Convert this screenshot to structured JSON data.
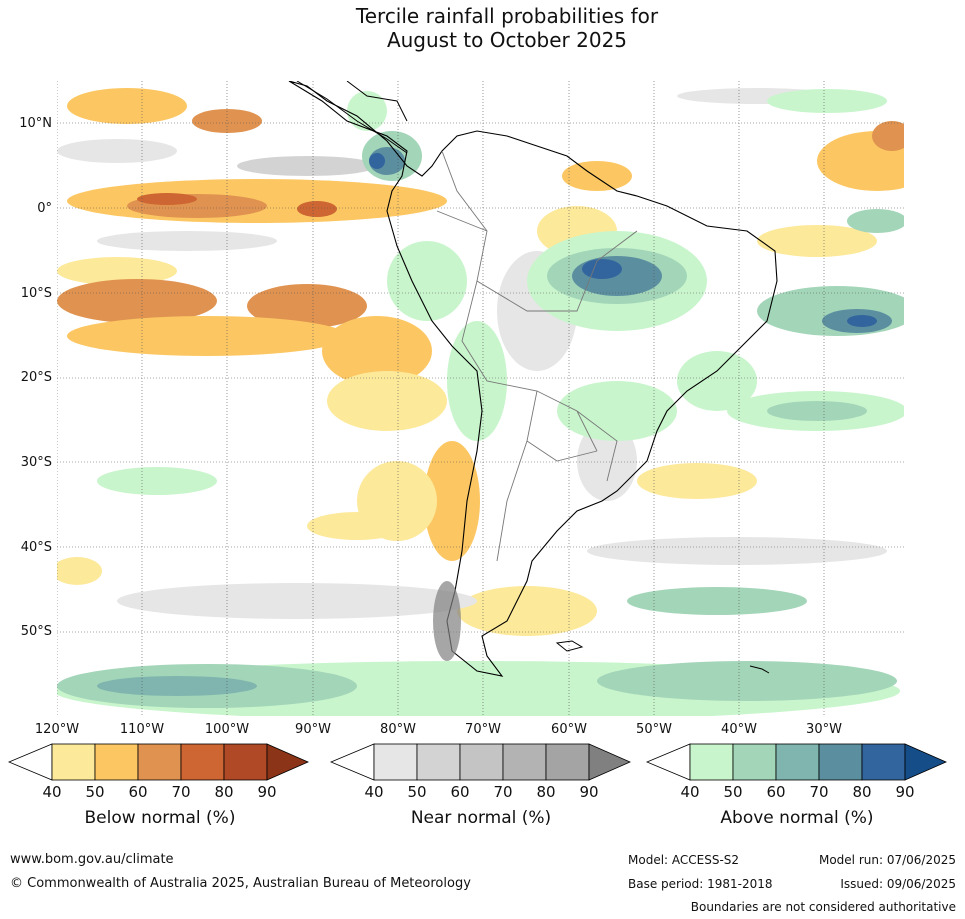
{
  "title_line1": "Tercile rainfall probabilities for",
  "title_line2": "August to October 2025",
  "lat_labels": [
    "10°N",
    "0°",
    "10°S",
    "20°S",
    "30°S",
    "40°S",
    "50°S"
  ],
  "lon_labels": [
    "120°W",
    "110°W",
    "100°W",
    "90°W",
    "80°W",
    "70°W",
    "60°W",
    "50°W",
    "40°W",
    "30°W"
  ],
  "colorbars": [
    {
      "label": "Below normal (%)",
      "ticks": [
        "40",
        "50",
        "60",
        "70",
        "80",
        "90"
      ],
      "colors": [
        "#ffffff",
        "#fde99a",
        "#fcc762",
        "#e09350",
        "#cd6632",
        "#b04926",
        "#8c3418"
      ]
    },
    {
      "label": "Near normal (%)",
      "ticks": [
        "40",
        "50",
        "60",
        "70",
        "80",
        "90"
      ],
      "colors": [
        "#ffffff",
        "#e6e6e6",
        "#d3d3d3",
        "#c4c4c4",
        "#b3b3b3",
        "#a4a4a4",
        "#808080"
      ]
    },
    {
      "label": "Above normal (%)",
      "ticks": [
        "40",
        "50",
        "60",
        "70",
        "80",
        "90"
      ],
      "colors": [
        "#ffffff",
        "#c8f5cc",
        "#a3d5b8",
        "#7fb5ae",
        "#5b8fa0",
        "#32659d",
        "#154d88"
      ]
    }
  ],
  "footer": {
    "website": "www.bom.gov.au/climate",
    "copyright": "© Commonwealth of Australia 2025, Australian Bureau of Meteorology",
    "model": "Model: ACCESS-S2",
    "model_run": "Model run: 07/06/2025",
    "base_period": "Base period: 1981-2018",
    "issued": "Issued: 09/06/2025",
    "disclaimer": "Boundaries are not considered authoritative"
  }
}
